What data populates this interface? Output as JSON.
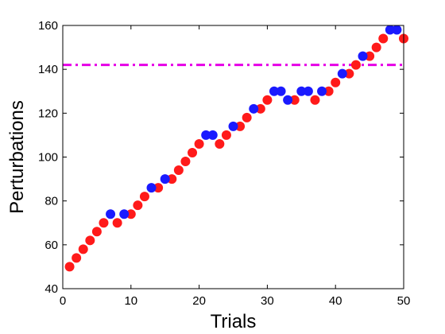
{
  "chart_data": {
    "type": "scatter",
    "title": "",
    "xlabel": "Trials",
    "ylabel": "Perturbations",
    "xlim": [
      0,
      50
    ],
    "ylim": [
      40,
      160
    ],
    "xticks": [
      0,
      10,
      20,
      30,
      40,
      50
    ],
    "yticks": [
      40,
      60,
      80,
      100,
      120,
      140,
      160
    ],
    "grid": false,
    "legend": "none",
    "threshold_line": {
      "y": 142,
      "color": "#e600e6",
      "style": "dash-dot"
    },
    "marker_colors": {
      "red": "#ff1a1a",
      "blue": "#1a1aff"
    },
    "series": [
      {
        "color": "red",
        "points": [
          [
            1,
            50
          ],
          [
            2,
            54
          ],
          [
            3,
            58
          ],
          [
            4,
            62
          ],
          [
            5,
            66
          ],
          [
            6,
            70
          ],
          [
            8,
            70
          ],
          [
            10,
            74
          ],
          [
            11,
            78
          ],
          [
            12,
            82
          ],
          [
            14,
            86
          ],
          [
            16,
            90
          ],
          [
            17,
            94
          ],
          [
            18,
            98
          ],
          [
            19,
            102
          ],
          [
            20,
            106
          ],
          [
            23,
            106
          ],
          [
            24,
            110
          ],
          [
            26,
            114
          ],
          [
            27,
            118
          ],
          [
            29,
            122
          ],
          [
            30,
            126
          ],
          [
            34,
            126
          ],
          [
            37,
            126
          ],
          [
            39,
            130
          ],
          [
            40,
            134
          ],
          [
            42,
            138
          ],
          [
            43,
            142
          ],
          [
            45,
            146
          ],
          [
            46,
            150
          ],
          [
            47,
            154
          ],
          [
            50,
            154
          ]
        ]
      },
      {
        "color": "blue",
        "points": [
          [
            7,
            74
          ],
          [
            9,
            74
          ],
          [
            13,
            86
          ],
          [
            15,
            90
          ],
          [
            21,
            110
          ],
          [
            22,
            110
          ],
          [
            25,
            114
          ],
          [
            28,
            122
          ],
          [
            31,
            130
          ],
          [
            32,
            130
          ],
          [
            33,
            126
          ],
          [
            35,
            130
          ],
          [
            36,
            130
          ],
          [
            38,
            130
          ],
          [
            41,
            138
          ],
          [
            44,
            146
          ],
          [
            48,
            158
          ],
          [
            49,
            158
          ]
        ]
      }
    ]
  }
}
